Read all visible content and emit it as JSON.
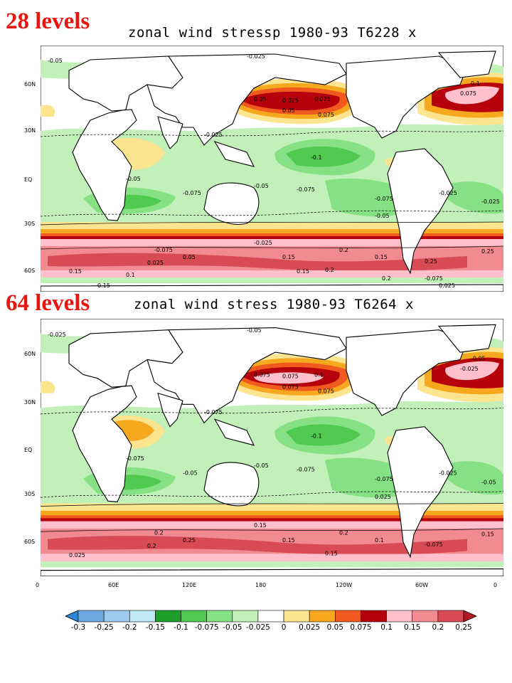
{
  "panels": [
    {
      "label": "28 levels",
      "title": "zonal wind stressp 1980-93 T6228 x",
      "contour_labels": [
        "-0.05",
        "-0.025",
        "0.025",
        "0.05",
        "0.075",
        "0.075",
        "0.05",
        "0.075",
        "0.1",
        "-0.025",
        "-0.1",
        "-0.05",
        "-0.075",
        "-0.075",
        "-0.025",
        "-0.025",
        "-0.05",
        "-0.075",
        "-0.05",
        "-0.025",
        "-0.075",
        "0.05",
        "0.025",
        "0.15",
        "0.2",
        "0.25",
        "0.15",
        "0.2",
        "0.25",
        "0.15",
        "0.1",
        "0.15",
        "0.2",
        "-0.075",
        "0.025",
        "0.15"
      ]
    },
    {
      "label": "64 levels",
      "title": "zonal wind stress 1980-93 T6264 x",
      "contour_labels": [
        "-0.025",
        "-0.05",
        "0.075",
        "0.075",
        "0.1",
        "0.075",
        "0.075",
        "-0.025",
        "-0.05",
        "-0.075",
        "-0.1",
        "-0.05",
        "-0.075",
        "-0.075",
        "-0.025",
        "-0.05",
        "-0.075",
        "-0.05",
        "0.025",
        "0.15",
        "0.2",
        "0.25",
        "0.2",
        "0.15",
        "0.2",
        "0.15",
        "0.1",
        "0.15",
        "-0.075",
        "0.025"
      ]
    }
  ],
  "lat_ticks": [
    "60N",
    "30N",
    "EQ",
    "30S",
    "60S"
  ],
  "lon_ticks": [
    "0",
    "60E",
    "120E",
    "180",
    "120W",
    "60W",
    "0"
  ],
  "colorbar": {
    "levels": [
      "-0.3",
      "-0.25",
      "-0.2",
      "-0.15",
      "-0.1",
      "-0.075",
      "-0.05",
      "-0.025",
      "0",
      "0.025",
      "0.05",
      "0.075",
      "0.1",
      "0.15",
      "0.2",
      "0.25"
    ],
    "colors": [
      "#2f86d6",
      "#6fa8e0",
      "#9dc9ee",
      "#bfe8f5",
      "#1e9e2a",
      "#4fc94f",
      "#86e084",
      "#c1f0b8",
      "#ffffff",
      "#fde48e",
      "#f6a81f",
      "#f05a1e",
      "#b6000c",
      "#ffc0cb",
      "#f28a92",
      "#d84b55",
      "#b51823"
    ]
  }
}
